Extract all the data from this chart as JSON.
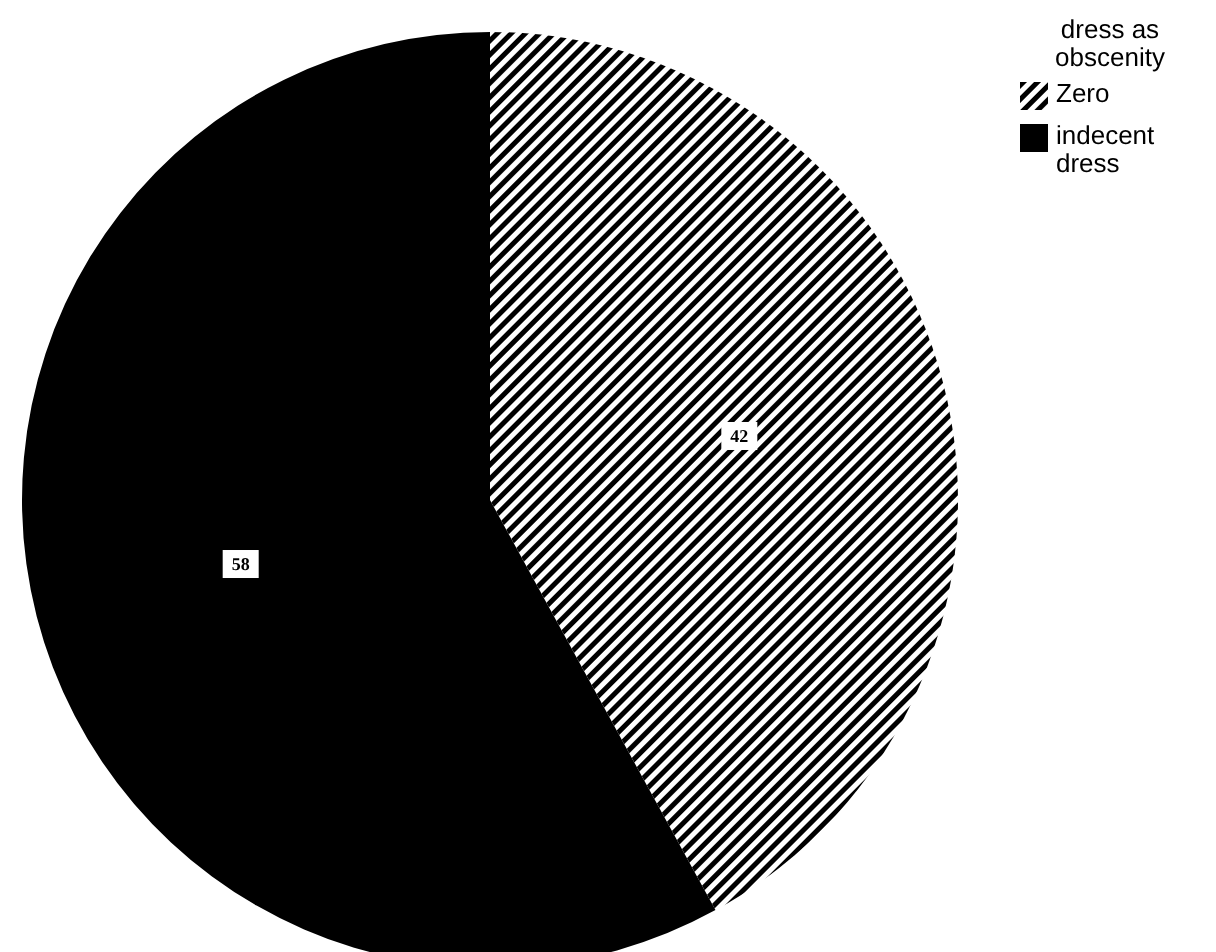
{
  "chart_data": {
    "type": "pie",
    "legend_title": "dress as obscenity",
    "categories": [
      "Zero",
      "indecent dress"
    ],
    "values": [
      42,
      58
    ],
    "colors": [
      "#000000",
      "#000000"
    ],
    "data_labels": true,
    "legend": "top right"
  }
}
